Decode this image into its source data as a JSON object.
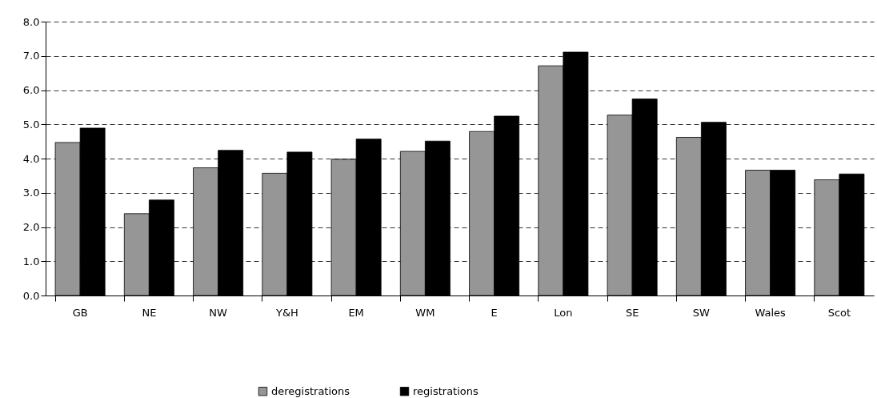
{
  "chart_data": {
    "type": "bar",
    "categories": [
      "GB",
      "NE",
      "NW",
      "Y&H",
      "EM",
      "WM",
      "E",
      "Lon",
      "SE",
      "SW",
      "Wales",
      "Scot"
    ],
    "series": [
      {
        "name": "deregistrations",
        "color": "#969696",
        "values": [
          4.47,
          2.39,
          3.73,
          3.57,
          3.98,
          4.21,
          4.79,
          6.71,
          5.27,
          4.62,
          3.66,
          3.38
        ]
      },
      {
        "name": "registrations",
        "color": "#000000",
        "values": [
          4.89,
          2.79,
          4.24,
          4.19,
          4.57,
          4.51,
          5.24,
          7.11,
          5.74,
          5.06,
          3.66,
          3.55
        ]
      }
    ],
    "ylim": [
      0,
      8
    ],
    "yticks": [
      {
        "value": 0,
        "label": "0.0"
      },
      {
        "value": 1,
        "label": "1.0"
      },
      {
        "value": 2,
        "label": "2.0"
      },
      {
        "value": 3,
        "label": "3.0"
      },
      {
        "value": 4,
        "label": "4.0"
      },
      {
        "value": 5,
        "label": "5.0"
      },
      {
        "value": 6,
        "label": "6.0"
      },
      {
        "value": 7,
        "label": "7.0"
      },
      {
        "value": 8,
        "label": "8.0"
      }
    ],
    "grid": "y",
    "legend": "bottom"
  }
}
